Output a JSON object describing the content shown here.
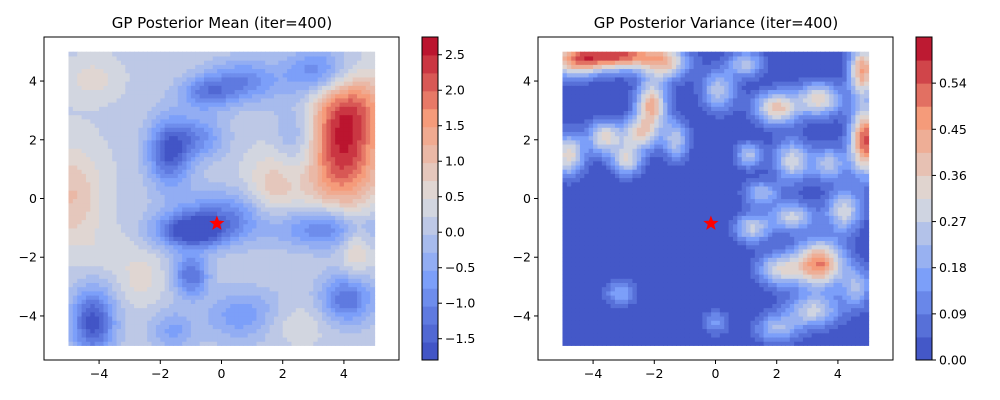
{
  "chart_data": [
    {
      "type": "heatmap",
      "title": "GP Posterior Mean (iter=400)",
      "x_ticks": [
        "−4",
        "−2",
        "0",
        "2",
        "4"
      ],
      "y_ticks": [
        "4",
        "2",
        "0",
        "−2",
        "−4"
      ],
      "x_range": [
        -5,
        5
      ],
      "y_range": [
        -5,
        5
      ],
      "axis_limits": {
        "x": [
          -5.8,
          5.8
        ],
        "y": [
          -5.5,
          5.5
        ]
      },
      "colormap": "coolwarm",
      "colorbar": {
        "ticks": [
          "2.5",
          "2.0",
          "1.5",
          "1.0",
          "0.5",
          "0.0",
          "−0.5",
          "−1.0",
          "−1.5"
        ],
        "range": [
          -1.8,
          2.75
        ],
        "levels": 18
      },
      "marker": {
        "shape": "star",
        "color": "#ff0000",
        "x": -0.15,
        "y": -0.85
      },
      "blobs": [
        {
          "x": 3.9,
          "y": 1.7,
          "value": 2.5,
          "sx": 0.9,
          "sy": 1.4
        },
        {
          "x": 4.3,
          "y": 3.3,
          "value": 1.1,
          "sx": 0.9,
          "sy": 0.8
        },
        {
          "x": -4.9,
          "y": 0.1,
          "value": 1.0,
          "sx": 0.7,
          "sy": 1.2
        },
        {
          "x": 1.7,
          "y": 0.4,
          "value": 0.9,
          "sx": 0.6,
          "sy": 0.9
        },
        {
          "x": 4.4,
          "y": -1.6,
          "value": 0.9,
          "sx": 0.35,
          "sy": 0.7
        },
        {
          "x": -4.2,
          "y": 4.1,
          "value": 0.6,
          "sx": 0.6,
          "sy": 0.5
        },
        {
          "x": -2.6,
          "y": -2.7,
          "value": 0.6,
          "sx": 0.5,
          "sy": 0.6
        },
        {
          "x": 2.0,
          "y": -4.2,
          "value": 0.6,
          "sx": 1.0,
          "sy": 0.5
        },
        {
          "x": -1.7,
          "y": 1.6,
          "value": -1.6,
          "sx": 0.5,
          "sy": 0.8
        },
        {
          "x": -1.0,
          "y": -1.1,
          "value": -1.7,
          "sx": 0.8,
          "sy": 0.4
        },
        {
          "x": 0.0,
          "y": -0.6,
          "value": -1.0,
          "sx": 1.1,
          "sy": 0.6
        },
        {
          "x": -4.2,
          "y": -4.2,
          "value": -1.7,
          "sx": 0.5,
          "sy": 0.8
        },
        {
          "x": -1.0,
          "y": -2.6,
          "value": -1.3,
          "sx": 0.4,
          "sy": 0.5
        },
        {
          "x": 3.5,
          "y": -1.0,
          "value": -1.2,
          "sx": 1.2,
          "sy": 0.5
        },
        {
          "x": 4.1,
          "y": -3.4,
          "value": -1.3,
          "sx": 0.6,
          "sy": 0.6
        },
        {
          "x": 3.2,
          "y": 4.3,
          "value": -1.2,
          "sx": 0.8,
          "sy": 0.6
        },
        {
          "x": 0.7,
          "y": 4.0,
          "value": -1.0,
          "sx": 0.8,
          "sy": 0.5
        },
        {
          "x": -0.5,
          "y": 3.6,
          "value": -1.0,
          "sx": 0.6,
          "sy": 0.4
        },
        {
          "x": -0.7,
          "y": 2.1,
          "value": -0.8,
          "sx": 0.6,
          "sy": 0.5
        },
        {
          "x": 0.8,
          "y": -4.0,
          "value": -0.9,
          "sx": 0.9,
          "sy": 0.6
        },
        {
          "x": 2.6,
          "y": 2.1,
          "value": -0.8,
          "sx": 0.6,
          "sy": 0.9
        },
        {
          "x": -1.6,
          "y": -4.5,
          "value": -0.6,
          "sx": 0.5,
          "sy": 0.5
        },
        {
          "x": -3.6,
          "y": -1.8,
          "value": 0.4,
          "sx": 0.6,
          "sy": 0.5
        }
      ]
    },
    {
      "type": "heatmap",
      "title": "GP Posterior Variance (iter=400)",
      "x_ticks": [
        "−4",
        "−2",
        "0",
        "2",
        "4"
      ],
      "y_ticks": [
        "4",
        "2",
        "0",
        "−2",
        "−4"
      ],
      "x_range": [
        -5,
        5
      ],
      "y_range": [
        -5,
        5
      ],
      "axis_limits": {
        "x": [
          -5.8,
          5.8
        ],
        "y": [
          -5.5,
          5.5
        ]
      },
      "colormap": "coolwarm",
      "colorbar": {
        "ticks": [
          "0.54",
          "0.45",
          "0.36",
          "0.27",
          "0.18",
          "0.09",
          "0.00"
        ],
        "range": [
          0.0,
          0.63
        ],
        "levels": 14
      },
      "marker": {
        "shape": "star",
        "color": "#ff0000",
        "x": -0.15,
        "y": -0.85
      },
      "blobs": [
        {
          "x": -3.2,
          "y": 4.9,
          "value": 0.55,
          "sx": 1.0,
          "sy": 0.35
        },
        {
          "x": -4.6,
          "y": 4.7,
          "value": 0.35,
          "sx": 0.6,
          "sy": 0.4
        },
        {
          "x": -1.6,
          "y": 4.6,
          "value": 0.3,
          "sx": 0.5,
          "sy": 0.4
        },
        {
          "x": -2.1,
          "y": 3.2,
          "value": 0.42,
          "sx": 0.35,
          "sy": 0.6
        },
        {
          "x": -3.6,
          "y": 2.1,
          "value": 0.33,
          "sx": 0.4,
          "sy": 0.4
        },
        {
          "x": -2.5,
          "y": 2.2,
          "value": 0.3,
          "sx": 0.4,
          "sy": 0.4
        },
        {
          "x": -4.8,
          "y": 1.5,
          "value": 0.35,
          "sx": 0.35,
          "sy": 0.5
        },
        {
          "x": -2.9,
          "y": 1.3,
          "value": 0.3,
          "sx": 0.35,
          "sy": 0.35
        },
        {
          "x": -1.3,
          "y": 2.0,
          "value": 0.25,
          "sx": 0.3,
          "sy": 0.5
        },
        {
          "x": 0.1,
          "y": 3.7,
          "value": 0.25,
          "sx": 0.4,
          "sy": 0.5
        },
        {
          "x": 1.0,
          "y": 4.6,
          "value": 0.25,
          "sx": 0.4,
          "sy": 0.3
        },
        {
          "x": 2.0,
          "y": 3.1,
          "value": 0.38,
          "sx": 0.5,
          "sy": 0.4
        },
        {
          "x": 3.4,
          "y": 3.4,
          "value": 0.35,
          "sx": 0.5,
          "sy": 0.4
        },
        {
          "x": 4.8,
          "y": 4.4,
          "value": 0.45,
          "sx": 0.3,
          "sy": 0.6
        },
        {
          "x": 4.9,
          "y": 2.0,
          "value": 0.55,
          "sx": 0.35,
          "sy": 0.8
        },
        {
          "x": 2.5,
          "y": 1.3,
          "value": 0.3,
          "sx": 0.4,
          "sy": 0.5
        },
        {
          "x": 1.1,
          "y": 1.5,
          "value": 0.25,
          "sx": 0.3,
          "sy": 0.3
        },
        {
          "x": 3.7,
          "y": 1.2,
          "value": 0.25,
          "sx": 0.4,
          "sy": 0.4
        },
        {
          "x": 1.5,
          "y": 0.2,
          "value": 0.22,
          "sx": 0.4,
          "sy": 0.3
        },
        {
          "x": 3.4,
          "y": -2.2,
          "value": 0.5,
          "sx": 0.55,
          "sy": 0.55
        },
        {
          "x": 2.1,
          "y": -2.4,
          "value": 0.3,
          "sx": 0.5,
          "sy": 0.4
        },
        {
          "x": 1.2,
          "y": -1.0,
          "value": 0.28,
          "sx": 0.4,
          "sy": 0.35
        },
        {
          "x": 2.5,
          "y": -0.6,
          "value": 0.28,
          "sx": 0.5,
          "sy": 0.35
        },
        {
          "x": 4.2,
          "y": -0.4,
          "value": 0.3,
          "sx": 0.4,
          "sy": 0.5
        },
        {
          "x": 3.2,
          "y": -3.8,
          "value": 0.28,
          "sx": 0.6,
          "sy": 0.4
        },
        {
          "x": 4.6,
          "y": -3.0,
          "value": 0.22,
          "sx": 0.35,
          "sy": 0.5
        },
        {
          "x": 2.0,
          "y": -4.4,
          "value": 0.22,
          "sx": 0.5,
          "sy": 0.35
        },
        {
          "x": -3.1,
          "y": -3.2,
          "value": 0.18,
          "sx": 0.35,
          "sy": 0.3
        },
        {
          "x": 0.0,
          "y": -4.2,
          "value": 0.15,
          "sx": 0.3,
          "sy": 0.3
        }
      ]
    }
  ]
}
